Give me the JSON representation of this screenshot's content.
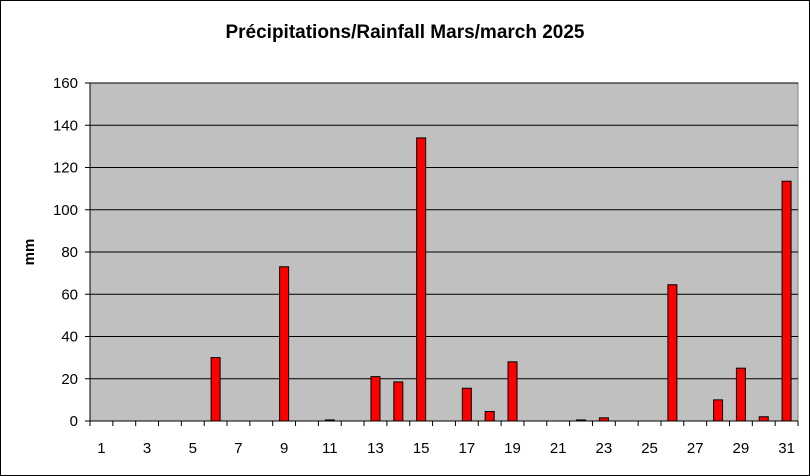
{
  "chart_data": {
    "type": "bar",
    "title": "Précipitations/Rainfall Mars/march 2025",
    "xlabel": "",
    "ylabel": "mm",
    "ylim": [
      0,
      160
    ],
    "yticks": [
      0,
      20,
      40,
      60,
      80,
      100,
      120,
      140,
      160
    ],
    "grid": true,
    "legend": "none",
    "categories": [
      "1",
      "2",
      "3",
      "4",
      "5",
      "6",
      "7",
      "8",
      "9",
      "10",
      "11",
      "12",
      "13",
      "14",
      "15",
      "16",
      "17",
      "18",
      "19",
      "20",
      "21",
      "22",
      "23",
      "24",
      "25",
      "26",
      "27",
      "28",
      "29",
      "30",
      "31"
    ],
    "xtick_labels": [
      "1",
      "3",
      "5",
      "7",
      "9",
      "11",
      "13",
      "15",
      "17",
      "19",
      "21",
      "23",
      "25",
      "27",
      "29",
      "31"
    ],
    "values": [
      0,
      0,
      0,
      0,
      0,
      30,
      0,
      0,
      73,
      0,
      0.5,
      0,
      21,
      18.5,
      134,
      0,
      15.5,
      4.5,
      28,
      0,
      0,
      0.5,
      1.5,
      0,
      0,
      64.5,
      0,
      10,
      25,
      2,
      113.5
    ],
    "colors": {
      "bar_fill": "#ff0000",
      "bar_stroke": "#000000",
      "plot_bg": "#c0c0c0",
      "grid": "#000000"
    }
  }
}
